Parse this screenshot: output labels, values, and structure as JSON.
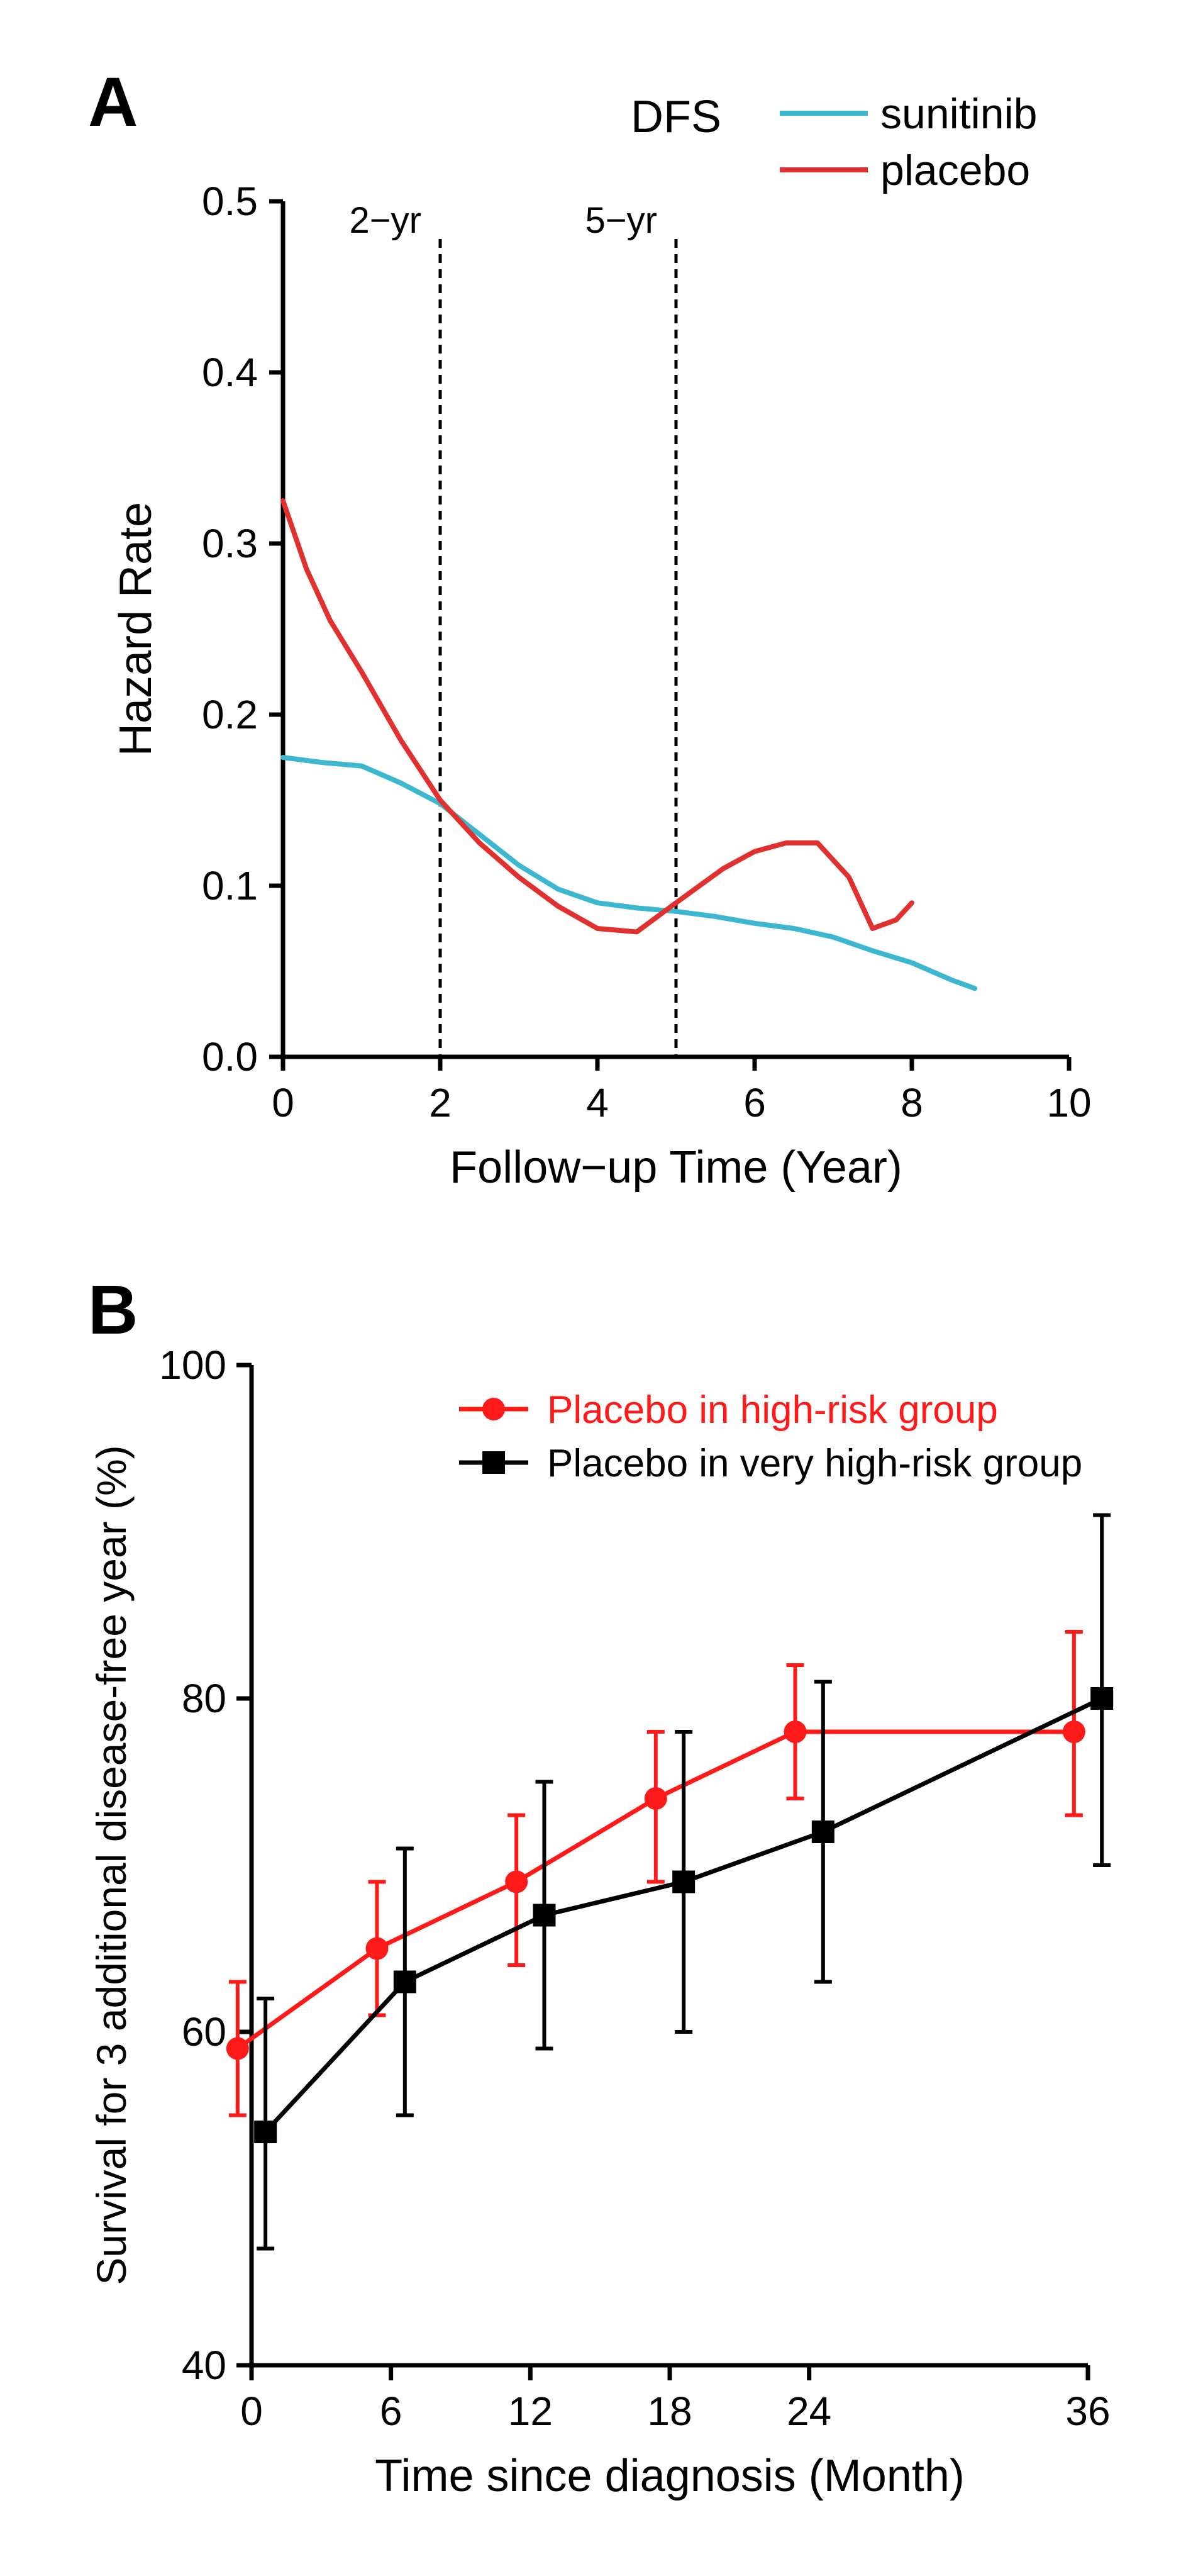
{
  "panelA": {
    "type": "line",
    "label": "A",
    "title": "DFS",
    "title_fontsize": 72,
    "xlabel": "Follow−up Time (Year)",
    "ylabel": "Hazard Rate",
    "label_fontsize": 72,
    "tick_fontsize": 64,
    "xlim": [
      0,
      10
    ],
    "ylim": [
      0.0,
      0.5
    ],
    "xticks": [
      0,
      2,
      4,
      6,
      8,
      10
    ],
    "yticks": [
      0.0,
      0.1,
      0.2,
      0.3,
      0.4,
      0.5
    ],
    "axis_color": "#000000",
    "axis_width": 7,
    "background_color": "#ffffff",
    "series": [
      {
        "name": "sunitinib",
        "color": "#3bb7cf",
        "line_width": 8,
        "x": [
          0.0,
          0.5,
          1.0,
          1.5,
          2.0,
          2.5,
          3.0,
          3.5,
          4.0,
          4.5,
          5.0,
          5.5,
          6.0,
          6.5,
          7.0,
          7.5,
          8.0,
          8.5,
          8.8
        ],
        "y": [
          0.175,
          0.172,
          0.17,
          0.16,
          0.148,
          0.13,
          0.112,
          0.098,
          0.09,
          0.087,
          0.085,
          0.082,
          0.078,
          0.075,
          0.07,
          0.062,
          0.055,
          0.045,
          0.04
        ]
      },
      {
        "name": "placebo",
        "color": "#e0312f",
        "line_width": 8,
        "x": [
          0.0,
          0.3,
          0.6,
          1.0,
          1.5,
          2.0,
          2.5,
          3.0,
          3.5,
          4.0,
          4.5,
          5.0,
          5.3,
          5.6,
          6.0,
          6.4,
          6.8,
          7.2,
          7.5,
          7.8,
          8.0
        ],
        "y": [
          0.325,
          0.285,
          0.255,
          0.225,
          0.185,
          0.15,
          0.125,
          0.105,
          0.088,
          0.075,
          0.073,
          0.09,
          0.1,
          0.11,
          0.12,
          0.125,
          0.125,
          0.105,
          0.075,
          0.08,
          0.09
        ]
      }
    ],
    "legend": {
      "items": [
        {
          "label": "sunitinib",
          "color": "#3bb7cf"
        },
        {
          "label": "placebo",
          "color": "#e0312f"
        }
      ],
      "fontsize": 68,
      "position": "top-right"
    },
    "vlines": [
      {
        "x": 2,
        "label": "2−yr",
        "dash": "14 10",
        "color": "#000000",
        "width": 5
      },
      {
        "x": 5,
        "label": "5−yr",
        "dash": "14 10",
        "color": "#000000",
        "width": 5
      }
    ]
  },
  "panelB": {
    "type": "errorbar-line",
    "label": "B",
    "xlabel": "Time since diagnosis (Month)",
    "ylabel": "Survival for 3 additional disease-free year (%)",
    "label_fontsize": 72,
    "tick_fontsize": 64,
    "xlim": [
      0,
      36
    ],
    "ylim": [
      40,
      100
    ],
    "xticks": [
      0,
      6,
      12,
      18,
      24,
      36
    ],
    "yticks": [
      40,
      60,
      80,
      100
    ],
    "axis_color": "#000000",
    "axis_width": 7,
    "background_color": "#ffffff",
    "cap_width": 14,
    "error_line_width": 6,
    "series": [
      {
        "name": "Placebo in high-risk group",
        "color": "#ff1a1a",
        "marker": "circle",
        "marker_size": 18,
        "line_width": 7,
        "x_offset": -0.6,
        "points": [
          {
            "x": 0,
            "y": 59,
            "lo": 55,
            "hi": 63
          },
          {
            "x": 6,
            "y": 65,
            "lo": 61,
            "hi": 69
          },
          {
            "x": 12,
            "y": 69,
            "lo": 64,
            "hi": 73
          },
          {
            "x": 18,
            "y": 74,
            "lo": 69,
            "hi": 78
          },
          {
            "x": 24,
            "y": 78,
            "lo": 74,
            "hi": 82
          },
          {
            "x": 36,
            "y": 78,
            "lo": 73,
            "hi": 84
          }
        ]
      },
      {
        "name": "Placebo in very high-risk group",
        "color": "#000000",
        "marker": "square",
        "marker_size": 18,
        "line_width": 7,
        "x_offset": 0.6,
        "points": [
          {
            "x": 0,
            "y": 54,
            "lo": 47,
            "hi": 62
          },
          {
            "x": 6,
            "y": 63,
            "lo": 55,
            "hi": 71
          },
          {
            "x": 12,
            "y": 67,
            "lo": 59,
            "hi": 75
          },
          {
            "x": 18,
            "y": 69,
            "lo": 60,
            "hi": 78
          },
          {
            "x": 24,
            "y": 72,
            "lo": 63,
            "hi": 81
          },
          {
            "x": 36,
            "y": 80,
            "lo": 70,
            "hi": 91
          }
        ]
      }
    ],
    "legend": {
      "items": [
        {
          "label": "Placebo in high-risk group",
          "color": "#ff1a1a",
          "marker": "circle"
        },
        {
          "label": "Placebo in very high-risk group",
          "color": "#000000",
          "marker": "square"
        }
      ],
      "fontsize": 62,
      "position": "top-inside"
    }
  }
}
